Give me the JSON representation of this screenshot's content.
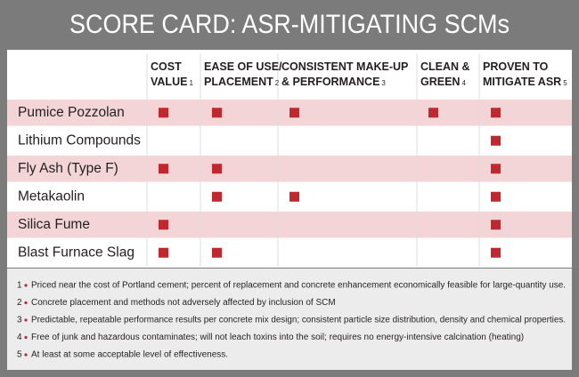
{
  "header": {
    "title": "SCORE CARD: ASR-MITIGATING SCMs"
  },
  "table": {
    "columns": [
      {
        "lines": [
          "COST",
          "VALUE"
        ],
        "note": "1"
      },
      {
        "lines": [
          "EASE OF USE/",
          "PLACEMENT"
        ],
        "note": "2"
      },
      {
        "lines": [
          "CONSISTENT MAKE-UP",
          "& PERFORMANCE"
        ],
        "note": "3"
      },
      {
        "lines": [
          "CLEAN &",
          "GREEN"
        ],
        "note": "4"
      },
      {
        "lines": [
          "PROVEN TO",
          "MITIGATE ASR"
        ],
        "note": "5"
      }
    ],
    "rows": [
      {
        "label": "Pumice Pozzolan",
        "marks": [
          true,
          true,
          true,
          true,
          true
        ]
      },
      {
        "label": "Lithium Compounds",
        "marks": [
          false,
          false,
          false,
          false,
          true
        ]
      },
      {
        "label": "Fly Ash (Type F)",
        "marks": [
          true,
          true,
          false,
          false,
          true
        ]
      },
      {
        "label": "Metakaolin",
        "marks": [
          false,
          true,
          true,
          false,
          true
        ]
      },
      {
        "label": "Silica Fume",
        "marks": [
          true,
          false,
          false,
          false,
          true
        ]
      },
      {
        "label": "Blast Furnace Slag",
        "marks": [
          true,
          true,
          false,
          false,
          true
        ]
      }
    ]
  },
  "footnotes": [
    {
      "number": "1",
      "text": "Priced near the cost of Portland cement; percent of replacement and concrete enhancement economically feasible for large-quantity use."
    },
    {
      "number": "2",
      "text": "Concrete placement and methods not adversely affected by inclusion of SCM"
    },
    {
      "number": "3",
      "text": "Predictable, repeatable performance results per concrete mix design; consistent particle size distribution, density and chemical properties."
    },
    {
      "number": "4",
      "text": "Free of junk and hazardous contaminates; will not leach toxins into the soil; requires no energy-intensive calcination (heating)"
    },
    {
      "number": "5",
      "text": "At least at some acceptable level of effectiveness."
    }
  ]
}
